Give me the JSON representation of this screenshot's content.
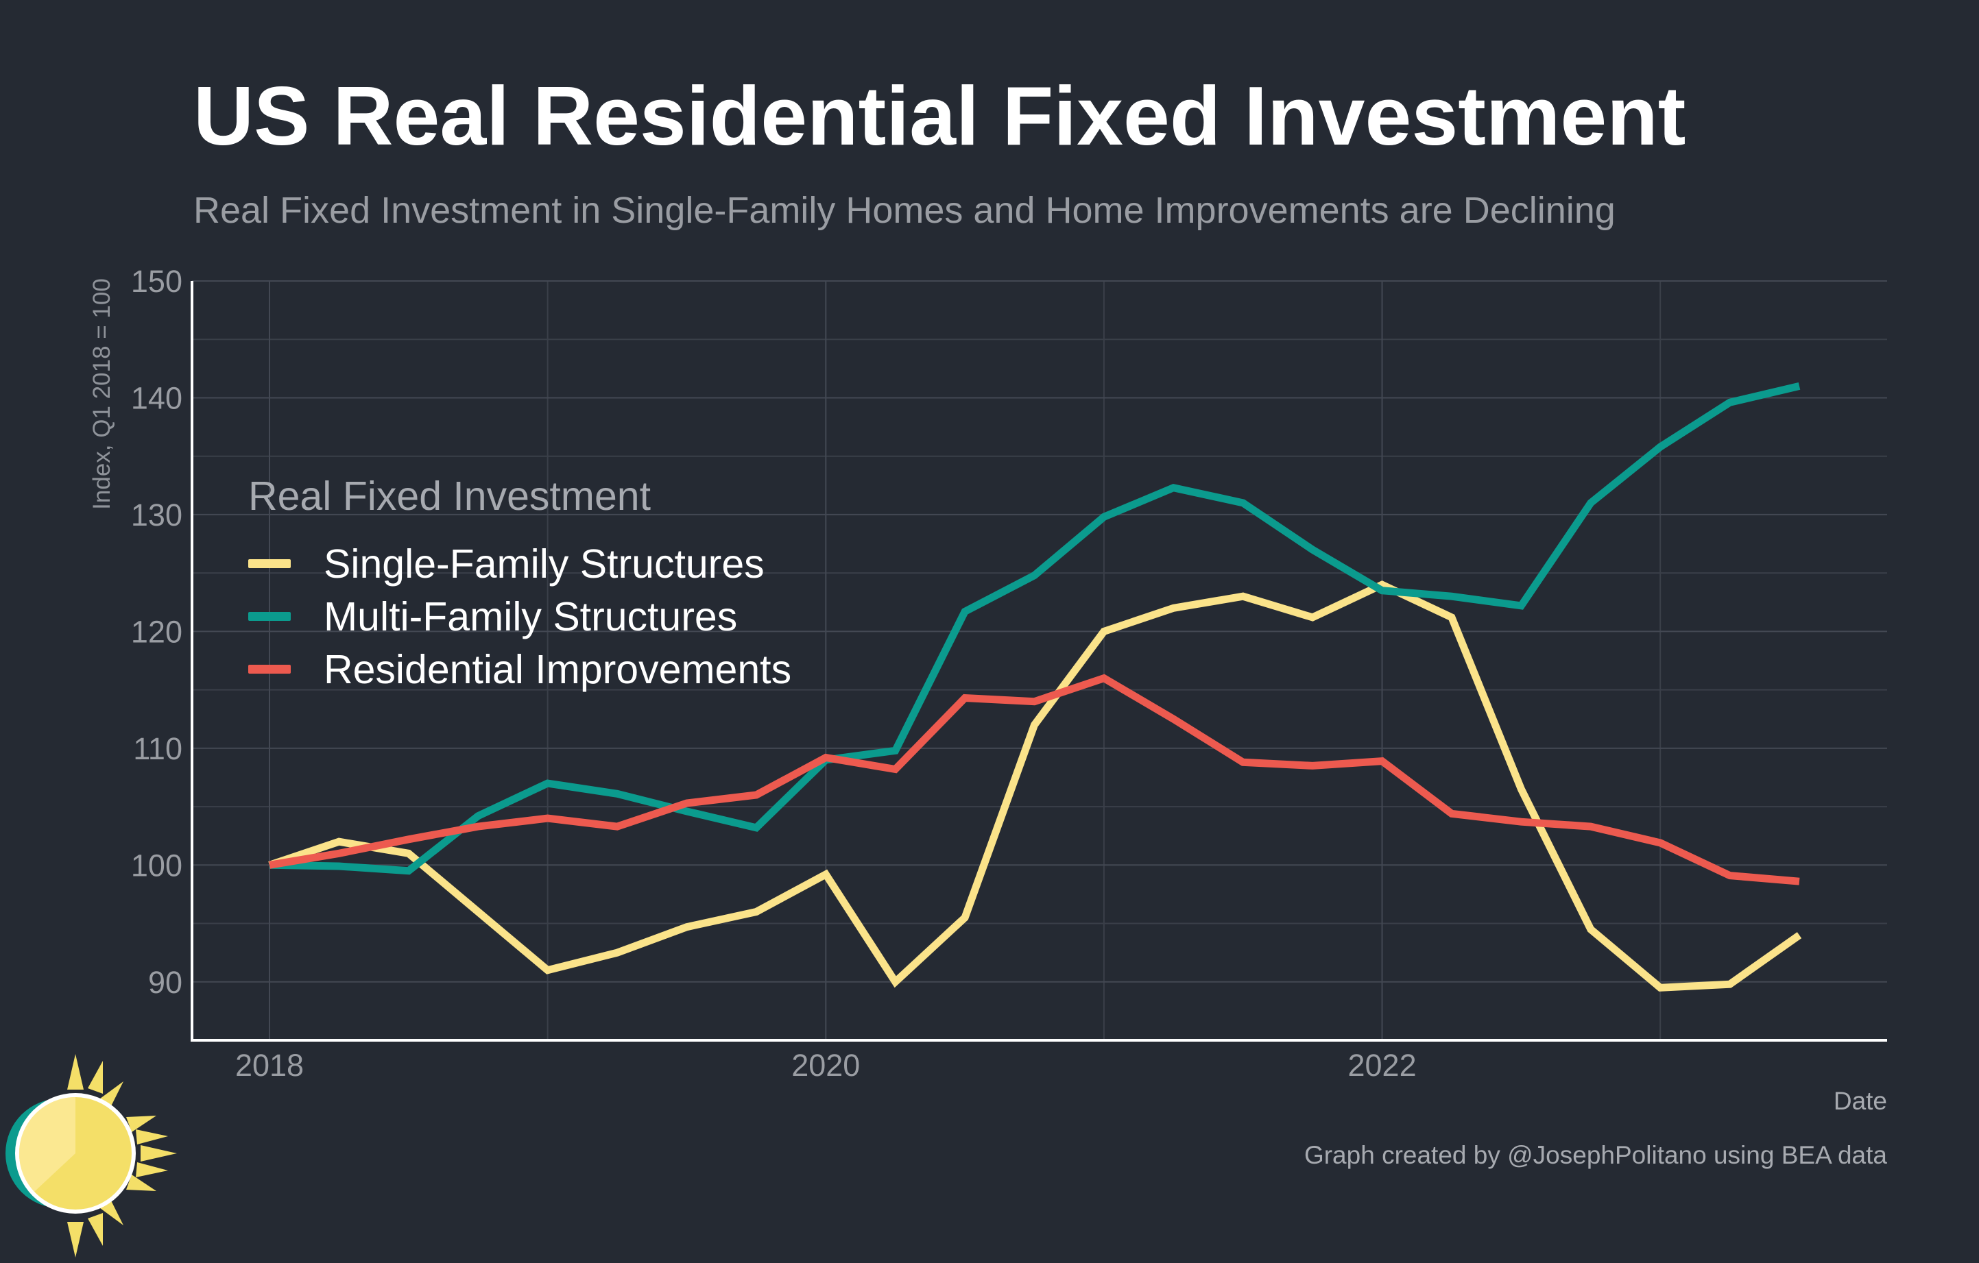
{
  "chart_data": {
    "type": "line",
    "title": "US Real Residential Fixed Investment",
    "subtitle": "Real Fixed Investment in Single-Family Homes and Home Improvements are Declining",
    "xlabel": "Date",
    "ylabel": "Index, Q1 2018 = 100",
    "caption": "Graph created by @JosephPolitano using BEA data",
    "legend_title": "Real Fixed Investment",
    "legend_position": "upper-left",
    "grid": true,
    "xlim": [
      2017.73,
      2023.78
    ],
    "ylim": [
      85,
      150
    ],
    "x_ticks": [
      2018,
      2020,
      2022
    ],
    "x_tick_labels": [
      "2018",
      "2020",
      "2022"
    ],
    "y_ticks": [
      90,
      100,
      110,
      120,
      130,
      140,
      150
    ],
    "y_tick_labels": [
      "90",
      "100",
      "110",
      "120",
      "130",
      "140",
      "150"
    ],
    "x": [
      2018.0,
      2018.25,
      2018.5,
      2018.75,
      2019.0,
      2019.25,
      2019.5,
      2019.75,
      2020.0,
      2020.25,
      2020.5,
      2020.75,
      2021.0,
      2021.25,
      2021.5,
      2021.75,
      2022.0,
      2022.25,
      2022.5,
      2022.75,
      2023.0,
      2023.25,
      2023.5
    ],
    "series": [
      {
        "name": "Single-Family Structures",
        "color": "#fbe38a",
        "values": [
          100.0,
          102.0,
          101.0,
          96.0,
          91.0,
          92.5,
          94.7,
          96.0,
          99.2,
          90.0,
          95.5,
          112.0,
          120.0,
          122.0,
          123.0,
          121.2,
          124.0,
          121.2,
          106.5,
          94.5,
          89.5,
          89.8,
          94.0
        ]
      },
      {
        "name": "Multi-Family Structures",
        "color": "#0b9b8e",
        "values": [
          100.0,
          99.9,
          99.5,
          104.2,
          107.0,
          106.1,
          104.6,
          103.2,
          109.0,
          109.8,
          121.7,
          124.8,
          129.8,
          132.3,
          131.0,
          127.0,
          123.5,
          123.0,
          122.2,
          131.0,
          135.8,
          139.6,
          141.0
        ]
      },
      {
        "name": "Residential Improvements",
        "color": "#ed5a4f",
        "values": [
          100.0,
          101.0,
          102.2,
          103.3,
          104.0,
          103.3,
          105.3,
          106.0,
          109.2,
          108.2,
          114.3,
          114.0,
          116.0,
          112.5,
          108.8,
          108.5,
          108.9,
          104.4,
          103.7,
          103.3,
          101.9,
          99.1,
          98.6
        ]
      }
    ]
  }
}
